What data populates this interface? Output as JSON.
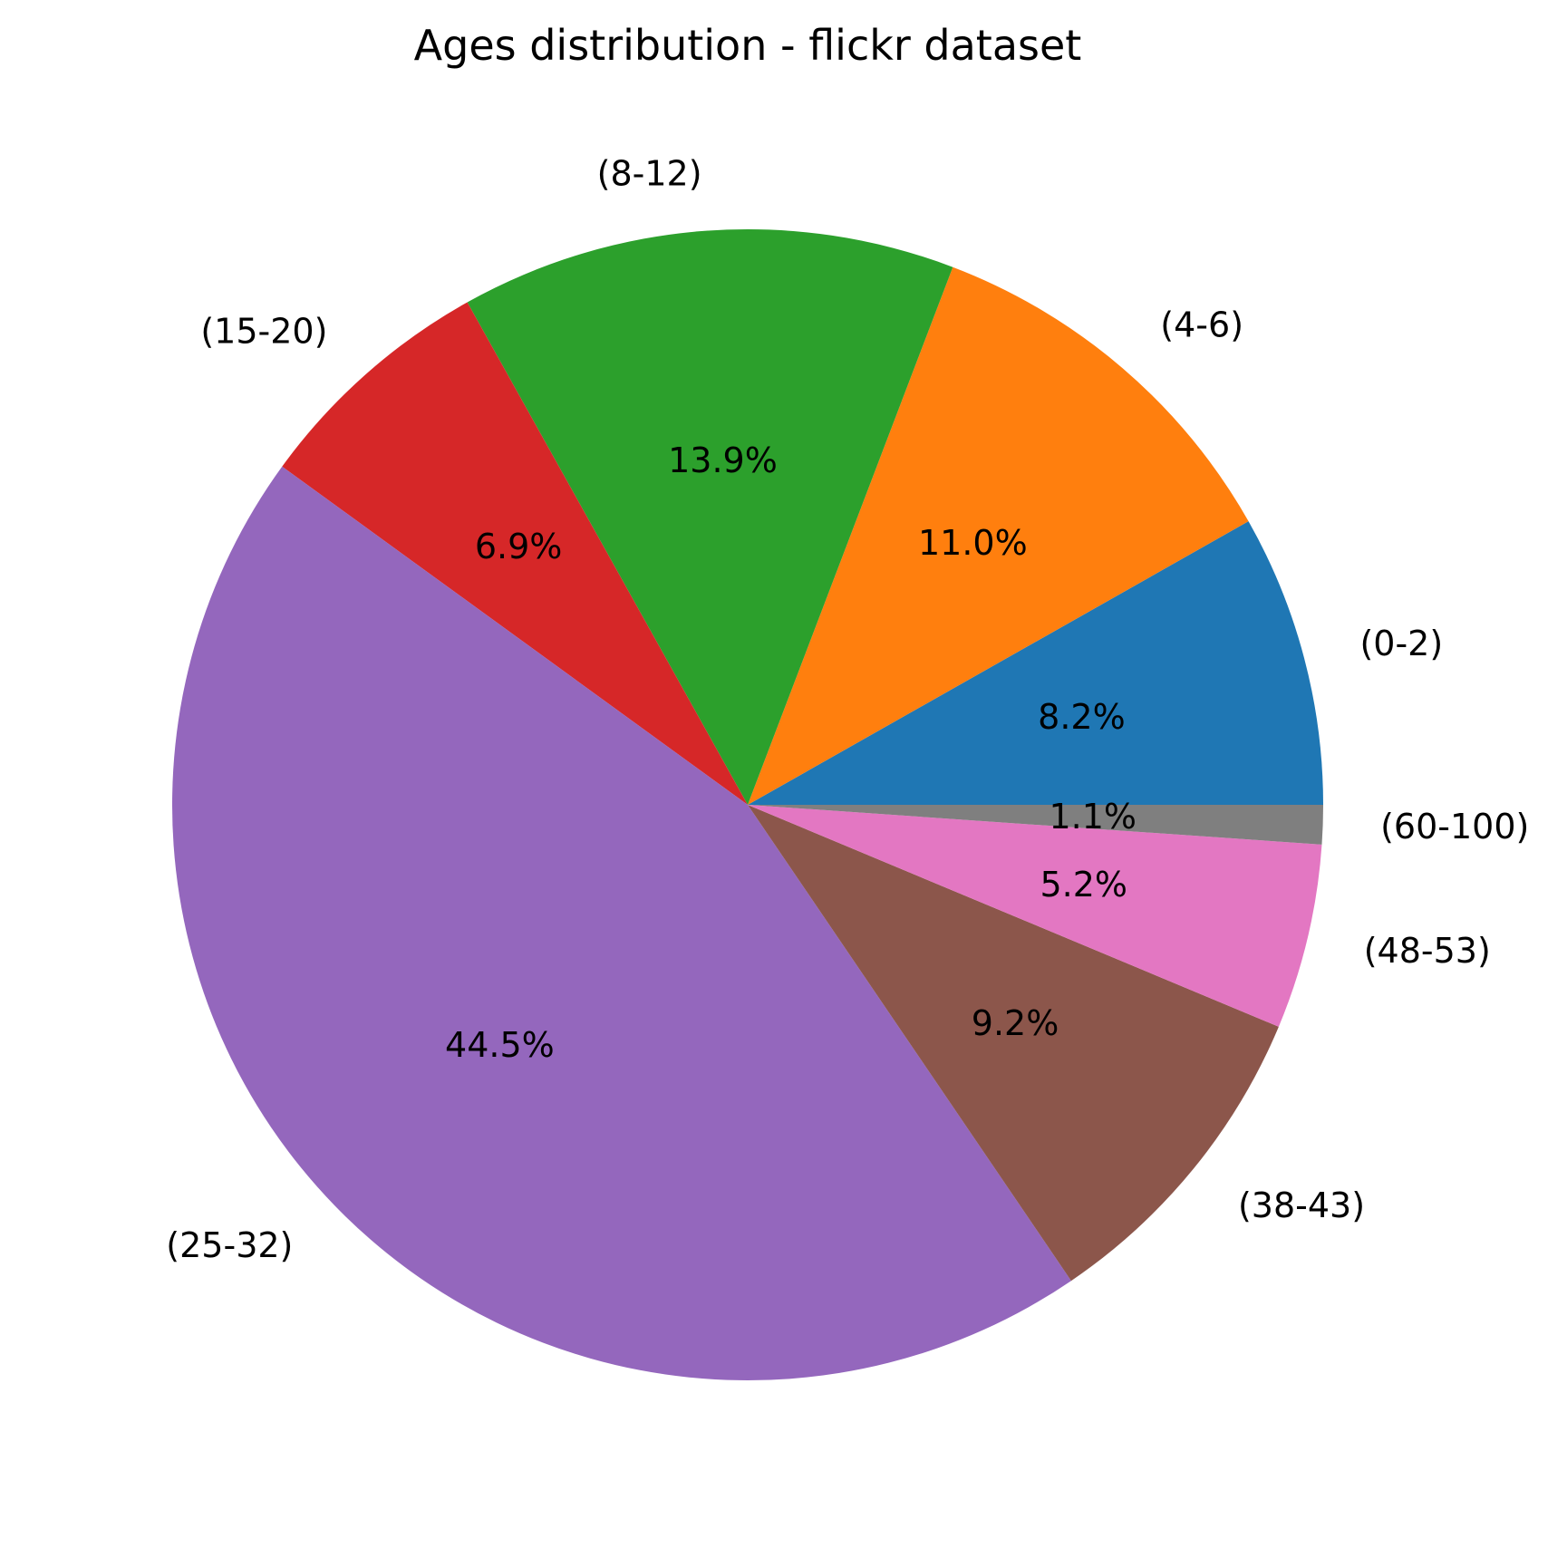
{
  "chart_data": {
    "type": "pie",
    "title": "Ages distribution - flickr dataset",
    "start_angle_deg": 0,
    "direction": "counterclockwise",
    "slices": [
      {
        "label": "(0-2)",
        "value": 8.2,
        "pct_label": "8.2%",
        "color": "#1f77b4"
      },
      {
        "label": "(4-6)",
        "value": 11.0,
        "pct_label": "11.0%",
        "color": "#ff7f0e"
      },
      {
        "label": "(8-12)",
        "value": 13.9,
        "pct_label": "13.9%",
        "color": "#2ca02c"
      },
      {
        "label": "(15-20)",
        "value": 6.9,
        "pct_label": "6.9%",
        "color": "#d62728"
      },
      {
        "label": "(25-32)",
        "value": 44.5,
        "pct_label": "44.5%",
        "color": "#9467bd"
      },
      {
        "label": "(38-43)",
        "value": 9.2,
        "pct_label": "9.2%",
        "color": "#8c564b"
      },
      {
        "label": "(48-53)",
        "value": 5.2,
        "pct_label": "5.2%",
        "color": "#e377c2"
      },
      {
        "label": "(60-100)",
        "value": 1.1,
        "pct_label": "1.1%",
        "color": "#7f7f7f"
      }
    ]
  }
}
